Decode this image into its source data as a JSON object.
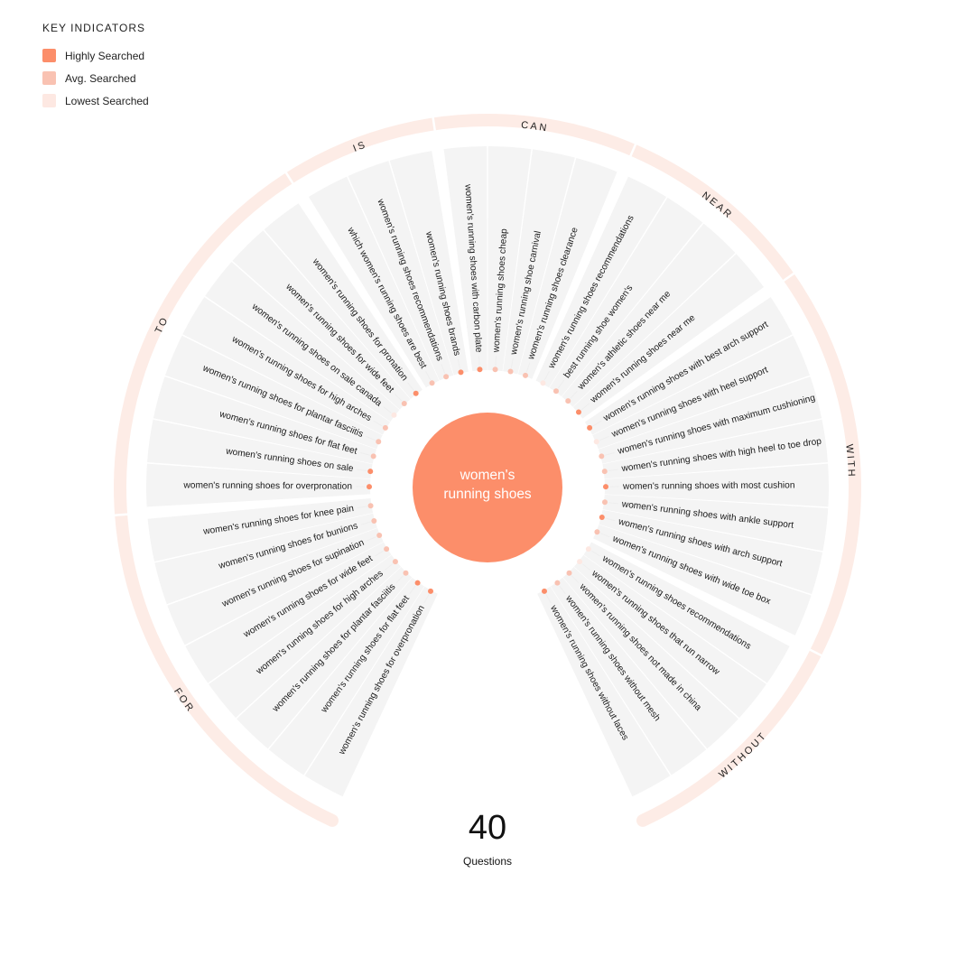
{
  "legend": {
    "title": "KEY INDICATORS",
    "items": [
      {
        "label": "Highly Searched",
        "color": "#fc8e6a"
      },
      {
        "label": "Avg. Searched",
        "color": "#f9c2b2"
      },
      {
        "label": "Lowest Searched",
        "color": "#fde8e2"
      }
    ]
  },
  "center": {
    "line1": "women's",
    "line2": "running shoes"
  },
  "summary": {
    "count": "40",
    "count_label": "Questions"
  },
  "colors": {
    "high": "#fc8e6a",
    "avg": "#f9c2b2",
    "low": "#fde8e2",
    "segment": "#f4f4f4",
    "ring": "#fdece6",
    "spoke": "#eeeeee"
  },
  "groups": [
    {
      "label": "FOR",
      "items": [
        {
          "text": "women's running shoes for overpronation",
          "level": "high"
        },
        {
          "text": "women's running shoes for flat feet",
          "level": "high"
        },
        {
          "text": "women's running shoes for plantar fasciitis",
          "level": "avg"
        },
        {
          "text": "women's running shoes for high arches",
          "level": "avg"
        },
        {
          "text": "women's running shoes for wide feet",
          "level": "avg"
        },
        {
          "text": "women's running shoes for supination",
          "level": "avg"
        },
        {
          "text": "women's running shoes for bunions",
          "level": "avg"
        },
        {
          "text": "women's running shoes for knee pain",
          "level": "avg"
        }
      ]
    },
    {
      "label": "TO",
      "items": [
        {
          "text": "women's running shoes for overpronation",
          "level": "high"
        },
        {
          "text": "women's running shoes on sale",
          "level": "high"
        },
        {
          "text": "women's running shoes for flat feet",
          "level": "avg"
        },
        {
          "text": "women's running shoes for plantar fasciitis",
          "level": "avg"
        },
        {
          "text": "women's running shoes for high arches",
          "level": "avg"
        },
        {
          "text": "women's running shoes on sale canada",
          "level": "low"
        },
        {
          "text": "women's running shoes for wide feet",
          "level": "avg"
        },
        {
          "text": "women's running shoes for pronation",
          "level": "high"
        }
      ]
    },
    {
      "label": "IS",
      "items": [
        {
          "text": "which women's running shoes are best",
          "level": "avg"
        },
        {
          "text": "women's running shoes recommendations",
          "level": "avg"
        },
        {
          "text": "women's running shoes brands",
          "level": "high"
        }
      ]
    },
    {
      "label": "CAN",
      "items": [
        {
          "text": "women's running shoes with carbon plate",
          "level": "high"
        },
        {
          "text": "women's running shoes cheap",
          "level": "avg"
        },
        {
          "text": "women's running shoe carnival",
          "level": "avg"
        },
        {
          "text": "women's running shoes clearance",
          "level": "avg"
        }
      ]
    },
    {
      "label": "NEAR",
      "items": [
        {
          "text": "women's running shoes recommendations",
          "level": "low"
        },
        {
          "text": "best running shoe women's",
          "level": "avg"
        },
        {
          "text": "women's athletic shoes near me",
          "level": "avg"
        },
        {
          "text": "women's running shoes near me",
          "level": "high"
        }
      ]
    },
    {
      "label": "WITH",
      "items": [
        {
          "text": "women's running shoes with best arch support",
          "level": "high"
        },
        {
          "text": "women's running shoes with heel support",
          "level": "low"
        },
        {
          "text": "women's running shoes with maximum cushioning",
          "level": "avg"
        },
        {
          "text": "women's running shoes with high heel to toe drop",
          "level": "avg"
        },
        {
          "text": "women's running shoes with most cushion",
          "level": "high"
        },
        {
          "text": "women's running shoes with ankle support",
          "level": "avg"
        },
        {
          "text": "women's running shoes with arch support",
          "level": "high"
        },
        {
          "text": "women's running shoes with wide toe box",
          "level": "avg"
        }
      ]
    },
    {
      "label": "WITHOUT",
      "items": [
        {
          "text": "women's running shoes recommendations",
          "level": "low"
        },
        {
          "text": "women's running shoes that run narrow",
          "level": "low"
        },
        {
          "text": "women's running shoes not made in china",
          "level": "avg"
        },
        {
          "text": "women's running shoes without mesh",
          "level": "avg"
        },
        {
          "text": "women's running shoes without laces",
          "level": "high"
        }
      ]
    }
  ]
}
